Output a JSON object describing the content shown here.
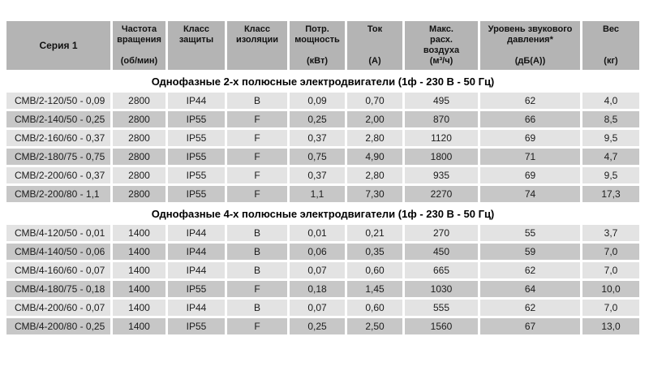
{
  "table": {
    "columns": [
      {
        "title": "Серия 1",
        "unit": ""
      },
      {
        "title": "Частота\nвращения",
        "unit": "(об/мин)"
      },
      {
        "title": "Класс\nзащиты",
        "unit": ""
      },
      {
        "title": "Класс\nизоляции",
        "unit": ""
      },
      {
        "title": "Потр.\nмощность",
        "unit": "(кВт)"
      },
      {
        "title": "Ток",
        "unit": "(А)"
      },
      {
        "title": "Макс.\nрасх.\nвоздуха",
        "unit": "(м³/ч)"
      },
      {
        "title": "Уровень звукового\nдавления*",
        "unit": "(дБ(А))"
      },
      {
        "title": "Вес",
        "unit": "(кг)"
      }
    ],
    "sections": [
      {
        "heading": "Однофазные 2-х полюсные электродвигатели (1ф - 230 В - 50 Гц)",
        "rows": [
          [
            "СМВ/2-120/50 - 0,09",
            "2800",
            "IP44",
            "B",
            "0,09",
            "0,70",
            "495",
            "62",
            "4,0"
          ],
          [
            "СМВ/2-140/50 - 0,25",
            "2800",
            "IP55",
            "F",
            "0,25",
            "2,00",
            "870",
            "66",
            "8,5"
          ],
          [
            "СМВ/2-160/60 - 0,37",
            "2800",
            "IP55",
            "F",
            "0,37",
            "2,80",
            "1120",
            "69",
            "9,5"
          ],
          [
            "СМВ/2-180/75 - 0,75",
            "2800",
            "IP55",
            "F",
            "0,75",
            "4,90",
            "1800",
            "71",
            "4,7"
          ],
          [
            "СМВ/2-200/60 - 0,37",
            "2800",
            "IP55",
            "F",
            "0,37",
            "2,80",
            "935",
            "69",
            "9,5"
          ],
          [
            "СМВ/2-200/80 - 1,1",
            "2800",
            "IP55",
            "F",
            "1,1",
            "7,30",
            "2270",
            "74",
            "17,3"
          ]
        ]
      },
      {
        "heading": "Однофазные 4-х полюсные электродвигатели (1ф - 230 В - 50 Гц)",
        "rows": [
          [
            "СМВ/4-120/50 - 0,01",
            "1400",
            "IP44",
            "B",
            "0,01",
            "0,21",
            "270",
            "55",
            "3,7"
          ],
          [
            "СМВ/4-140/50 - 0,06",
            "1400",
            "IP44",
            "B",
            "0,06",
            "0,35",
            "450",
            "59",
            "7,0"
          ],
          [
            "СМВ/4-160/60 - 0,07",
            "1400",
            "IP44",
            "B",
            "0,07",
            "0,60",
            "665",
            "62",
            "7,0"
          ],
          [
            "СМВ/4-180/75 - 0,18",
            "1400",
            "IP55",
            "F",
            "0,18",
            "1,45",
            "1030",
            "64",
            "10,0"
          ],
          [
            "СМВ/4-200/60 - 0,07",
            "1400",
            "IP44",
            "B",
            "0,07",
            "0,60",
            "555",
            "62",
            "7,0"
          ],
          [
            "СМВ/4-200/80 - 0,25",
            "1400",
            "IP55",
            "F",
            "0,25",
            "2,50",
            "1560",
            "67",
            "13,0"
          ]
        ]
      }
    ],
    "colors": {
      "header_bg": "#b4b4b4",
      "row_light_bg": "#e3e3e3",
      "row_dark_bg": "#c7c7c7",
      "gap": "#ffffff",
      "text": "#1c1c1c"
    }
  }
}
